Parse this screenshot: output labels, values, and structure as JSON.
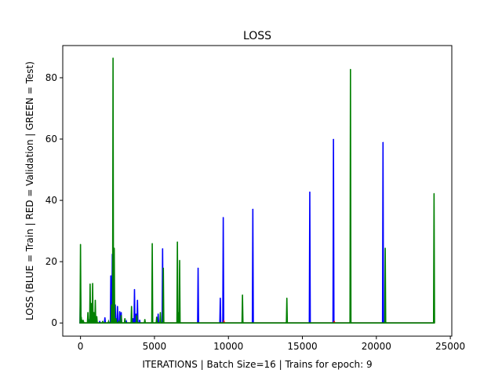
{
  "chart_data": {
    "type": "line",
    "title": "LOSS",
    "xlabel": "ITERATIONS | Batch Size=16 | Trains for epoch: 9",
    "ylabel": "LOSS (BLUE = Train | RED = Validation | GREEN = Test)",
    "xlim": [
      -1200,
      25100
    ],
    "ylim": [
      -4.3,
      90.5
    ],
    "x_ticks": [
      0,
      5000,
      10000,
      15000,
      20000,
      25000
    ],
    "x_tick_labels": [
      "0",
      "5000",
      "10000",
      "15000",
      "20000",
      "25000"
    ],
    "y_ticks": [
      0,
      20,
      40,
      60,
      80
    ],
    "y_tick_labels": [
      "0",
      "20",
      "40",
      "60",
      "80"
    ],
    "grid": false,
    "legend": "none",
    "x_end": 23950,
    "series": [
      {
        "color": "#0000ff",
        "spikes": [
          [
            0,
            13.0
          ],
          [
            50,
            1.5
          ],
          [
            150,
            0.8
          ],
          [
            600,
            1.2
          ],
          [
            700,
            4.0
          ],
          [
            800,
            2.5
          ],
          [
            1000,
            1.2
          ],
          [
            1300,
            0.6
          ],
          [
            1650,
            1.8
          ],
          [
            2050,
            15.5
          ],
          [
            2150,
            22.5
          ],
          [
            2250,
            13.5
          ],
          [
            2350,
            6.0
          ],
          [
            2500,
            5.5
          ],
          [
            2650,
            3.8
          ],
          [
            2750,
            3.5
          ],
          [
            3100,
            0.5
          ],
          [
            3550,
            1.5
          ],
          [
            3650,
            11.0
          ],
          [
            3750,
            3.0
          ],
          [
            3850,
            7.5
          ],
          [
            4000,
            1.0
          ],
          [
            5250,
            3.0
          ],
          [
            5550,
            24.3
          ],
          [
            7950,
            18.0
          ],
          [
            9450,
            8.2
          ],
          [
            9650,
            34.5
          ],
          [
            11650,
            37.2
          ],
          [
            15500,
            42.8
          ],
          [
            17100,
            60.0
          ],
          [
            20450,
            59.0
          ]
        ]
      },
      {
        "color": "#ff0000",
        "spikes": [
          [
            120,
            0.6
          ],
          [
            2180,
            1.2
          ],
          [
            5600,
            0.8
          ],
          [
            9700,
            0.5
          ],
          [
            17150,
            0.6
          ]
        ]
      },
      {
        "color": "#008000",
        "spikes": [
          [
            0,
            25.7
          ],
          [
            50,
            2.0
          ],
          [
            120,
            1.0
          ],
          [
            200,
            0.5
          ],
          [
            500,
            3.5
          ],
          [
            650,
            12.8
          ],
          [
            750,
            6.5
          ],
          [
            820,
            13.0
          ],
          [
            900,
            3.5
          ],
          [
            1000,
            7.5
          ],
          [
            1100,
            2.2
          ],
          [
            1500,
            0.6
          ],
          [
            1900,
            0.5
          ],
          [
            2100,
            6.0
          ],
          [
            2200,
            86.5
          ],
          [
            2280,
            24.5
          ],
          [
            2400,
            1.5
          ],
          [
            2600,
            0.7
          ],
          [
            2750,
            2.5
          ],
          [
            3000,
            1.5
          ],
          [
            3450,
            5.5
          ],
          [
            3800,
            2.5
          ],
          [
            4350,
            1.2
          ],
          [
            4850,
            26.0
          ],
          [
            5150,
            2.0
          ],
          [
            5400,
            3.5
          ],
          [
            5600,
            18.0
          ],
          [
            6550,
            26.5
          ],
          [
            6650,
            3.5
          ],
          [
            6700,
            20.5
          ],
          [
            10950,
            9.2
          ],
          [
            13950,
            8.2
          ],
          [
            18250,
            82.8
          ],
          [
            20600,
            24.5
          ],
          [
            23900,
            42.3
          ]
        ]
      }
    ]
  }
}
